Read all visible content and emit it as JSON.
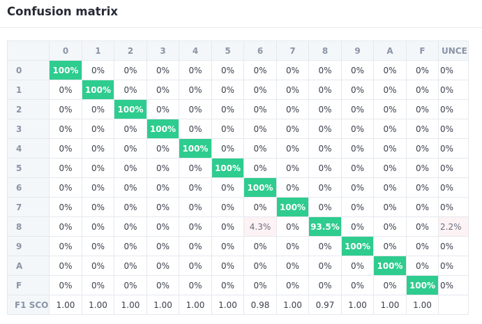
{
  "title": "Confusion matrix",
  "columns": [
    "0",
    "1",
    "2",
    "3",
    "4",
    "5",
    "6",
    "7",
    "8",
    "9",
    "A",
    "F",
    "UNCE"
  ],
  "rows": [
    {
      "label": "0",
      "cells": [
        "100%",
        "0%",
        "0%",
        "0%",
        "0%",
        "0%",
        "0%",
        "0%",
        "0%",
        "0%",
        "0%",
        "0%",
        "0%"
      ]
    },
    {
      "label": "1",
      "cells": [
        "0%",
        "100%",
        "0%",
        "0%",
        "0%",
        "0%",
        "0%",
        "0%",
        "0%",
        "0%",
        "0%",
        "0%",
        "0%"
      ]
    },
    {
      "label": "2",
      "cells": [
        "0%",
        "0%",
        "100%",
        "0%",
        "0%",
        "0%",
        "0%",
        "0%",
        "0%",
        "0%",
        "0%",
        "0%",
        "0%"
      ]
    },
    {
      "label": "3",
      "cells": [
        "0%",
        "0%",
        "0%",
        "100%",
        "0%",
        "0%",
        "0%",
        "0%",
        "0%",
        "0%",
        "0%",
        "0%",
        "0%"
      ]
    },
    {
      "label": "4",
      "cells": [
        "0%",
        "0%",
        "0%",
        "0%",
        "100%",
        "0%",
        "0%",
        "0%",
        "0%",
        "0%",
        "0%",
        "0%",
        "0%"
      ]
    },
    {
      "label": "5",
      "cells": [
        "0%",
        "0%",
        "0%",
        "0%",
        "0%",
        "100%",
        "0%",
        "0%",
        "0%",
        "0%",
        "0%",
        "0%",
        "0%"
      ]
    },
    {
      "label": "6",
      "cells": [
        "0%",
        "0%",
        "0%",
        "0%",
        "0%",
        "0%",
        "100%",
        "0%",
        "0%",
        "0%",
        "0%",
        "0%",
        "0%"
      ]
    },
    {
      "label": "7",
      "cells": [
        "0%",
        "0%",
        "0%",
        "0%",
        "0%",
        "0%",
        "0%",
        "100%",
        "0%",
        "0%",
        "0%",
        "0%",
        "0%"
      ]
    },
    {
      "label": "8",
      "cells": [
        "0%",
        "0%",
        "0%",
        "0%",
        "0%",
        "0%",
        "4.3%",
        "0%",
        "93.5%",
        "0%",
        "0%",
        "0%",
        "2.2%"
      ]
    },
    {
      "label": "9",
      "cells": [
        "0%",
        "0%",
        "0%",
        "0%",
        "0%",
        "0%",
        "0%",
        "0%",
        "0%",
        "100%",
        "0%",
        "0%",
        "0%"
      ]
    },
    {
      "label": "A",
      "cells": [
        "0%",
        "0%",
        "0%",
        "0%",
        "0%",
        "0%",
        "0%",
        "0%",
        "0%",
        "0%",
        "100%",
        "0%",
        "0%"
      ]
    },
    {
      "label": "F",
      "cells": [
        "0%",
        "0%",
        "0%",
        "0%",
        "0%",
        "0%",
        "0%",
        "0%",
        "0%",
        "0%",
        "0%",
        "100%",
        "0%"
      ]
    }
  ],
  "f1_row": {
    "label": "F1 SCO",
    "cells": [
      "1.00",
      "1.00",
      "1.00",
      "1.00",
      "1.00",
      "1.00",
      "0.98",
      "1.00",
      "0.97",
      "1.00",
      "1.00",
      "1.00",
      ""
    ]
  },
  "colors": {
    "hit": "#2ecc8e",
    "miss": "#fdf2f4",
    "header_bg": "#f4f7fa",
    "grid": "#e4e8ee"
  }
}
